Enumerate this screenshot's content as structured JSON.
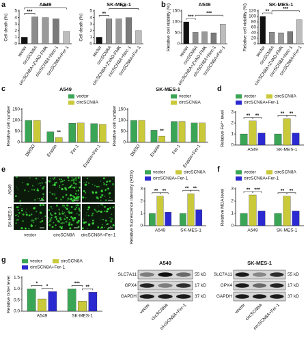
{
  "chart_data": [
    {
      "panel": "a",
      "type": "bar",
      "title": "A549",
      "ylabel": "Cell death (%)",
      "categories": [
        "vector",
        "circSCN8A",
        "circSCN8A+ZVAD-FMK",
        "circSCN8A+Nec-1",
        "circSCN8A+Fer-1"
      ],
      "values": [
        1.0,
        4.1,
        4.0,
        3.8,
        1.9
      ],
      "colors": [
        "#111111",
        "#8c8c8c",
        "#9a9a9a",
        "#7a7a7a",
        "#bdbdbd"
      ],
      "ylim": [
        0,
        5
      ],
      "yticks": [
        0,
        1,
        2,
        3,
        4,
        5
      ],
      "annotations": [
        "***",
        "***"
      ]
    },
    {
      "type": "bar",
      "title": "SK-MES-1",
      "ylabel": "Cell death (%)",
      "categories": [
        "vector",
        "circSCN8A",
        "circSCN8A+ZVAD-FMK",
        "circSCN8A+Nec-1",
        "circSCN8A+Fer-1"
      ],
      "values": [
        1.0,
        3.8,
        3.8,
        4.0,
        2.0
      ],
      "colors": [
        "#111111",
        "#8c8c8c",
        "#9a9a9a",
        "#7a7a7a",
        "#bdbdbd"
      ],
      "ylim": [
        0,
        5
      ],
      "yticks": [
        0,
        1,
        2,
        3,
        4,
        5
      ],
      "annotations": [
        "**",
        "**"
      ]
    },
    {
      "panel": "b",
      "type": "bar",
      "title": "A549",
      "ylabel": "Relative cell viability (%)",
      "categories": [
        "vector",
        "circSCN8A",
        "circSCN8A+ZVAD-FMK",
        "circSCN8A+Nec-1",
        "circSCN8A+Fer-1"
      ],
      "values": [
        100,
        52,
        55,
        50,
        90
      ],
      "colors": [
        "#111111",
        "#8c8c8c",
        "#9a9a9a",
        "#7a7a7a",
        "#bdbdbd"
      ],
      "ylim": [
        0,
        150
      ],
      "yticks": [
        0,
        50,
        100,
        150
      ],
      "annotations": [
        "***",
        "***"
      ]
    },
    {
      "type": "bar",
      "title": "SK-MES-1",
      "ylabel": "Relative cell viability (%)",
      "categories": [
        "vector",
        "circSCN8A",
        "circSCN8A+ZVAD-FMK",
        "circSCN8A+Nec-1",
        "circSCN8A+Fer-1"
      ],
      "values": [
        100,
        42,
        40,
        45,
        88
      ],
      "colors": [
        "#111111",
        "#8c8c8c",
        "#9a9a9a",
        "#7a7a7a",
        "#bdbdbd"
      ],
      "ylim": [
        0,
        120
      ],
      "yticks": [
        0,
        20,
        40,
        60,
        80,
        100,
        120
      ],
      "annotations": [
        "**",
        "***"
      ]
    },
    {
      "panel": "c",
      "type": "grouped-bar",
      "title": "A549",
      "ylabel": "Relative cell number",
      "categories": [
        "DMSO",
        "Erastin",
        "Fer-1",
        "Erastin+Fer-1"
      ],
      "series": [
        {
          "name": "vector",
          "color": "#3aa655",
          "values": [
            100,
            48,
            87,
            85
          ]
        },
        {
          "name": "circSCN8A",
          "color": "#c9c93a",
          "values": [
            100,
            22,
            88,
            82
          ]
        }
      ],
      "ylim": [
        0,
        150
      ],
      "yticks": [
        0,
        50,
        100,
        150
      ],
      "annotations": [
        "**"
      ]
    },
    {
      "type": "grouped-bar",
      "title": "SK-MES-1",
      "ylabel": "Relative cell number",
      "categories": [
        "DMSO",
        "Erastin",
        "Fer-1",
        "Erastin+Fer-1"
      ],
      "series": [
        {
          "name": "vector",
          "color": "#3aa655",
          "values": [
            100,
            55,
            95,
            88
          ]
        },
        {
          "name": "circSCN8A",
          "color": "#c9c93a",
          "values": [
            100,
            28,
            95,
            88
          ]
        }
      ],
      "ylim": [
        0,
        150
      ],
      "yticks": [
        0,
        50,
        100,
        150
      ],
      "annotations": [
        "**"
      ]
    },
    {
      "panel": "d",
      "type": "grouped-bar",
      "ylabel": "Relative Fe²⁺ level",
      "categories": [
        "A549",
        "SK-MES-1"
      ],
      "series": [
        {
          "name": "vector",
          "color": "#3aa655",
          "values": [
            1.0,
            1.0
          ]
        },
        {
          "name": "circSCN8A",
          "color": "#c9c93a",
          "values": [
            2.2,
            2.4
          ]
        },
        {
          "name": "circSCN8A+Fer-1",
          "color": "#2a2ad0",
          "values": [
            1.1,
            1.1
          ]
        }
      ],
      "ylim": [
        0,
        3
      ],
      "yticks": [
        0,
        1,
        2,
        3
      ],
      "annotations": [
        "**",
        "**",
        "**",
        "**"
      ]
    },
    {
      "panel": "e",
      "type": "grouped-bar",
      "ylabel": "Relative fluorescence intensity (ROS)",
      "categories": [
        "A549",
        "SK-MES-1"
      ],
      "series": [
        {
          "name": "vector",
          "color": "#3aa655",
          "values": [
            1.0,
            1.0
          ]
        },
        {
          "name": "circSCN8A",
          "color": "#c9c93a",
          "values": [
            2.4,
            2.6
          ]
        },
        {
          "name": "circSCN8A+Fer-1",
          "color": "#2a2ad0",
          "values": [
            1.1,
            1.3
          ]
        }
      ],
      "ylim": [
        0,
        3
      ],
      "yticks": [
        0,
        1,
        2,
        3
      ],
      "annotations": [
        "**",
        "**",
        "**",
        "**"
      ]
    },
    {
      "panel": "f",
      "type": "grouped-bar",
      "ylabel": "Relative MDA level",
      "categories": [
        "A549",
        "SK-MES-1"
      ],
      "series": [
        {
          "name": "vector",
          "color": "#3aa655",
          "values": [
            1.0,
            1.0
          ]
        },
        {
          "name": "circSCN8A",
          "color": "#c9c93a",
          "values": [
            2.5,
            2.4
          ]
        },
        {
          "name": "circSCN8A+Fer-1",
          "color": "#2a2ad0",
          "values": [
            1.2,
            1.2
          ]
        }
      ],
      "ylim": [
        0,
        3
      ],
      "yticks": [
        0,
        1,
        2,
        3
      ],
      "annotations": [
        "**",
        "***",
        "**",
        "**"
      ]
    },
    {
      "panel": "g",
      "type": "grouped-bar",
      "ylabel": "Relative GSH level",
      "categories": [
        "A549",
        "SK-MES-1"
      ],
      "series": [
        {
          "name": "vector",
          "color": "#3aa655",
          "values": [
            1.0,
            1.0
          ]
        },
        {
          "name": "circSCN8A",
          "color": "#c9c93a",
          "values": [
            0.55,
            0.45
          ]
        },
        {
          "name": "circSCN8A+Fer-1",
          "color": "#2a2ad0",
          "values": [
            0.88,
            0.85
          ]
        }
      ],
      "ylim": [
        0,
        1.5
      ],
      "yticks": [
        {
          "value": 0,
          "label": "0.0"
        },
        {
          "value": 0.5,
          "label": "0.5"
        },
        {
          "value": 1,
          "label": "1.0"
        },
        {
          "value": 1.5,
          "label": "1.5"
        }
      ],
      "annotations": [
        "*",
        "*",
        "***",
        "**"
      ]
    }
  ],
  "images": {
    "row_labels": [
      "A549",
      "SK-MES-1"
    ],
    "column_labels": [
      "vector",
      "circSCN8A",
      "circSCN8A+Fer-1"
    ]
  },
  "blots": {
    "panel": "h",
    "groups": [
      {
        "title": "A549",
        "rows": [
          "SLC7A11",
          "GPX4",
          "GAPDH"
        ],
        "sizes": [
          "55 kD",
          "17 kD",
          "37 kD"
        ],
        "lanes": [
          "vector",
          "circSCN8A",
          "circSCN8A+Fer-1"
        ]
      },
      {
        "title": "SK-MES-1",
        "rows": [
          "SLC7A11",
          "GPX4",
          "GAPDH"
        ],
        "sizes": [
          "55 kD",
          "17 kD",
          "37 kD"
        ],
        "lanes": [
          "vector",
          "circSCN8A",
          "circSCN8A+Fer-1"
        ]
      }
    ]
  }
}
